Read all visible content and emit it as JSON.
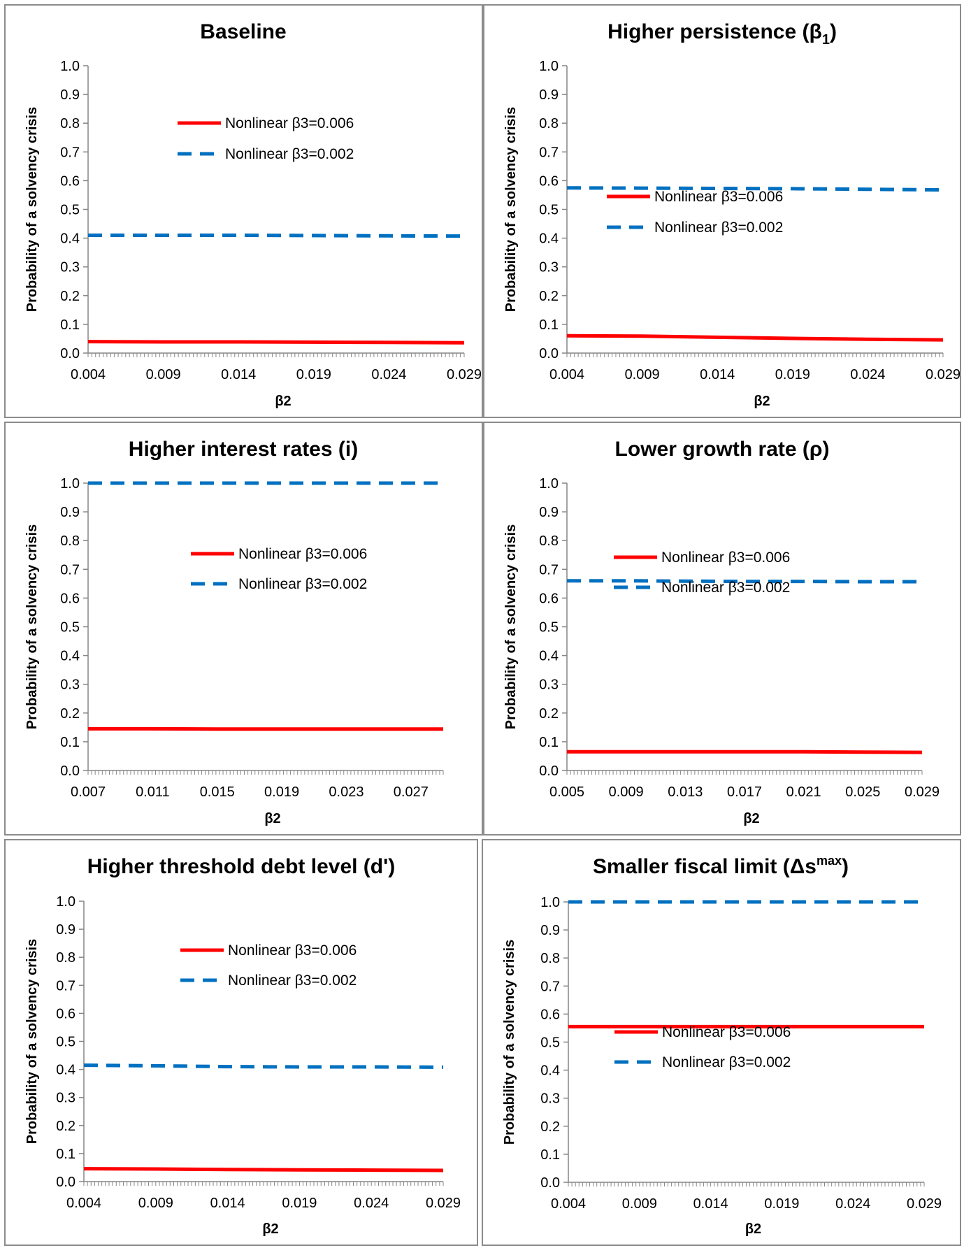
{
  "legend": {
    "series": [
      {
        "name": "Nonlinear β3=0.006",
        "color": "#ff0000",
        "style": "solid"
      },
      {
        "name": "Nonlinear β3=0.002",
        "color": "#0070c0",
        "style": "dashed"
      }
    ]
  },
  "chart_data": [
    {
      "type": "line",
      "title": "Baseline",
      "title_sub": "",
      "title_sup": "",
      "xlabel": "β2",
      "ylabel": "Probability of a solvency crisis",
      "xticks": [
        "0.004",
        "0.009",
        "0.014",
        "0.019",
        "0.024",
        "0.029"
      ],
      "yticks": [
        "0.0",
        "0.1",
        "0.2",
        "0.3",
        "0.4",
        "0.5",
        "0.6",
        "0.7",
        "0.8",
        "0.9",
        "1.0"
      ],
      "xlim": [
        0.004,
        0.029
      ],
      "ylim": [
        0,
        1
      ],
      "grid": false,
      "legend_position": "top-center",
      "series": [
        {
          "name": "Nonlinear β3=0.006",
          "x": [
            0.004,
            0.009,
            0.014,
            0.019,
            0.024,
            0.029
          ],
          "y": [
            0.04,
            0.039,
            0.039,
            0.038,
            0.037,
            0.036
          ]
        },
        {
          "name": "Nonlinear β3=0.002",
          "x": [
            0.004,
            0.009,
            0.014,
            0.019,
            0.024,
            0.029
          ],
          "y": [
            0.41,
            0.41,
            0.41,
            0.409,
            0.408,
            0.407
          ]
        }
      ]
    },
    {
      "type": "line",
      "title": "Higher persistence (β",
      "title_sub": "1",
      "title_sup": "",
      "title_end": ")",
      "xlabel": "β2",
      "ylabel": "Probability of a solvency crisis",
      "xticks": [
        "0.004",
        "0.009",
        "0.014",
        "0.019",
        "0.024",
        "0.029"
      ],
      "yticks": [
        "0.0",
        "0.1",
        "0.2",
        "0.3",
        "0.4",
        "0.5",
        "0.6",
        "0.7",
        "0.8",
        "0.9",
        "1.0"
      ],
      "xlim": [
        0.004,
        0.029
      ],
      "ylim": [
        0,
        1
      ],
      "grid": false,
      "legend_position": "center-right",
      "series": [
        {
          "name": "Nonlinear β3=0.006",
          "x": [
            0.004,
            0.009,
            0.014,
            0.019,
            0.024,
            0.029
          ],
          "y": [
            0.06,
            0.059,
            0.055,
            0.051,
            0.048,
            0.046
          ]
        },
        {
          "name": "Nonlinear β3=0.002",
          "x": [
            0.004,
            0.009,
            0.014,
            0.019,
            0.024,
            0.029
          ],
          "y": [
            0.575,
            0.574,
            0.573,
            0.572,
            0.57,
            0.568
          ]
        }
      ]
    },
    {
      "type": "line",
      "title": "Higher interest rates (i)",
      "title_sub": "",
      "title_sup": "",
      "xlabel": "β2",
      "ylabel": "Probability of a solvency crisis",
      "xticks": [
        "0.007",
        "0.011",
        "0.015",
        "0.019",
        "0.023",
        "0.027"
      ],
      "yticks": [
        "0.0",
        "0.1",
        "0.2",
        "0.3",
        "0.4",
        "0.5",
        "0.6",
        "0.7",
        "0.8",
        "0.9",
        "1.0"
      ],
      "xlim": [
        0.007,
        0.029
      ],
      "ylim": [
        0,
        1
      ],
      "grid": false,
      "legend_position": "center-right",
      "series": [
        {
          "name": "Nonlinear β3=0.006",
          "x": [
            0.007,
            0.011,
            0.015,
            0.019,
            0.023,
            0.029
          ],
          "y": [
            0.145,
            0.145,
            0.144,
            0.144,
            0.144,
            0.144
          ]
        },
        {
          "name": "Nonlinear β3=0.002",
          "x": [
            0.007,
            0.011,
            0.015,
            0.019,
            0.023,
            0.029
          ],
          "y": [
            1.0,
            1.0,
            1.0,
            1.0,
            1.0,
            1.0
          ]
        }
      ]
    },
    {
      "type": "line",
      "title": "Lower growth rate (ρ)",
      "title_sub": "",
      "title_sup": "",
      "xlabel": "β2",
      "ylabel": "Probability of a solvency crisis",
      "xticks": [
        "0.005",
        "0.009",
        "0.013",
        "0.017",
        "0.021",
        "0.025",
        "0.029"
      ],
      "yticks": [
        "0.0",
        "0.1",
        "0.2",
        "0.3",
        "0.4",
        "0.5",
        "0.6",
        "0.7",
        "0.8",
        "0.9",
        "1.0"
      ],
      "xlim": [
        0.005,
        0.029
      ],
      "ylim": [
        0,
        1
      ],
      "grid": false,
      "legend_position": "center-right",
      "series": [
        {
          "name": "Nonlinear β3=0.006",
          "x": [
            0.005,
            0.009,
            0.013,
            0.017,
            0.021,
            0.025,
            0.029
          ],
          "y": [
            0.065,
            0.065,
            0.065,
            0.065,
            0.065,
            0.064,
            0.063
          ]
        },
        {
          "name": "Nonlinear β3=0.002",
          "x": [
            0.005,
            0.009,
            0.013,
            0.017,
            0.021,
            0.025,
            0.029
          ],
          "y": [
            0.66,
            0.66,
            0.659,
            0.658,
            0.658,
            0.657,
            0.657
          ]
        }
      ]
    },
    {
      "type": "line",
      "title": "Higher threshold debt level (d')",
      "title_sub": "",
      "title_sup": "",
      "xlabel": "β2",
      "ylabel": "Probability of a solvency crisis",
      "xticks": [
        "0.004",
        "0.009",
        "0.014",
        "0.019",
        "0.024",
        "0.029"
      ],
      "yticks": [
        "0.0",
        "0.1",
        "0.2",
        "0.3",
        "0.4",
        "0.5",
        "0.6",
        "0.7",
        "0.8",
        "0.9",
        "1.0"
      ],
      "xlim": [
        0.004,
        0.029
      ],
      "ylim": [
        0,
        1
      ],
      "grid": false,
      "legend_position": "center-right",
      "series": [
        {
          "name": "Nonlinear β3=0.006",
          "x": [
            0.004,
            0.009,
            0.014,
            0.019,
            0.024,
            0.029
          ],
          "y": [
            0.046,
            0.045,
            0.043,
            0.042,
            0.041,
            0.04
          ]
        },
        {
          "name": "Nonlinear β3=0.002",
          "x": [
            0.004,
            0.009,
            0.014,
            0.019,
            0.024,
            0.029
          ],
          "y": [
            0.415,
            0.413,
            0.41,
            0.409,
            0.409,
            0.408
          ]
        }
      ]
    },
    {
      "type": "line",
      "title": "Smaller fiscal limit (Δs",
      "title_sub": "",
      "title_sup": "max",
      "title_end": ")",
      "xlabel": "β2",
      "ylabel": "Probability of a solvency crisis",
      "xticks": [
        "0.004",
        "0.009",
        "0.014",
        "0.019",
        "0.024",
        "0.029"
      ],
      "yticks": [
        "0.0",
        "0.1",
        "0.2",
        "0.3",
        "0.4",
        "0.5",
        "0.6",
        "0.7",
        "0.8",
        "0.9",
        "1.0"
      ],
      "xlim": [
        0.004,
        0.029
      ],
      "ylim": [
        0,
        1
      ],
      "grid": false,
      "legend_position": "bottom-right",
      "series": [
        {
          "name": "Nonlinear β3=0.006",
          "x": [
            0.004,
            0.009,
            0.014,
            0.019,
            0.024,
            0.029
          ],
          "y": [
            0.555,
            0.555,
            0.555,
            0.555,
            0.555,
            0.555
          ]
        },
        {
          "name": "Nonlinear β3=0.002",
          "x": [
            0.004,
            0.009,
            0.014,
            0.019,
            0.024,
            0.029
          ],
          "y": [
            1.0,
            1.0,
            1.0,
            1.0,
            1.0,
            1.0
          ]
        }
      ]
    }
  ]
}
